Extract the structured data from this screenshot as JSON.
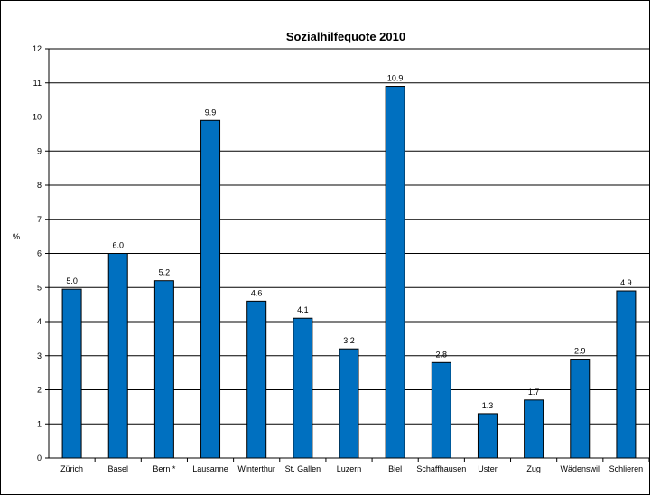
{
  "chart_data": {
    "type": "bar",
    "title": "Sozialhilfequote 2010",
    "xlabel": "",
    "ylabel": "%",
    "ylim": [
      0,
      12
    ],
    "yticks": [
      "0",
      "1",
      "2",
      "3",
      "4",
      "5",
      "6",
      "7",
      "8",
      "9",
      "10",
      "11",
      "12"
    ],
    "grid": true,
    "legend": "none",
    "categories": [
      "Zürich",
      "Basel",
      "Bern *",
      "Lausanne",
      "Winterthur",
      "St. Gallen",
      "Luzern",
      "Biel",
      "Schaffhausen",
      "Uster",
      "Zug",
      "Wädenswil",
      "Schlieren"
    ],
    "values": [
      4.95,
      6.0,
      5.2,
      9.9,
      4.6,
      4.1,
      3.2,
      10.9,
      2.8,
      1.3,
      1.7,
      2.9,
      4.9
    ],
    "value_labels": [
      "5.0",
      "6.0",
      "5.2",
      "9.9",
      "4.6",
      "4.1",
      "3.2",
      "10.9",
      "2.8",
      "1.3",
      "1.7",
      "2.9",
      "4.9"
    ],
    "bar_color": "#0070C0",
    "bar_outline": "#000000"
  }
}
